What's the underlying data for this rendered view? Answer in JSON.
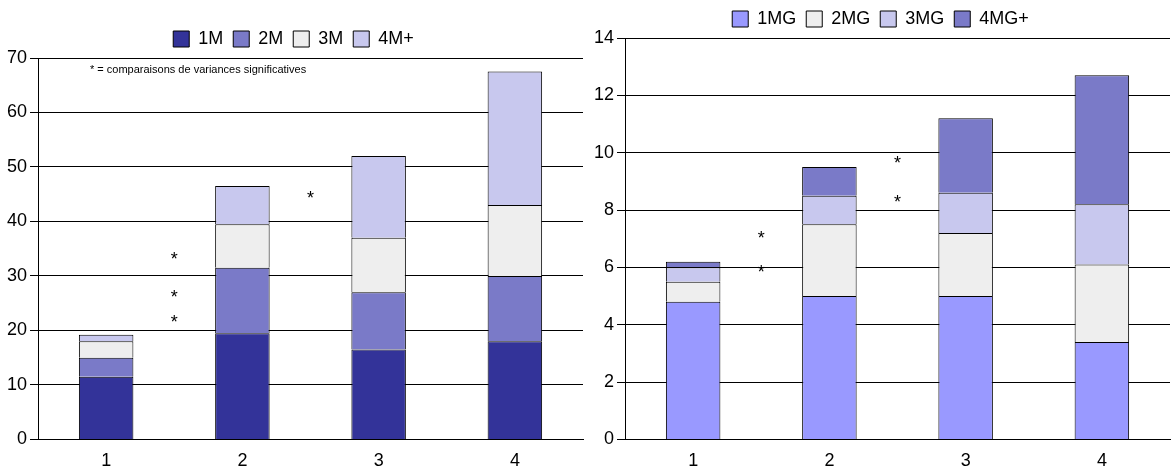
{
  "chart_data": [
    {
      "type": "bar",
      "stacked": true,
      "categories": [
        "1",
        "2",
        "3",
        "4"
      ],
      "ylim": [
        0,
        70
      ],
      "yticks": [
        0,
        10,
        20,
        30,
        40,
        50,
        60,
        70
      ],
      "grid": "y",
      "legend": "top",
      "series": [
        {
          "name": "1M",
          "color": "#333399",
          "values": [
            11.5,
            19.5,
            16.5,
            18
          ]
        },
        {
          "name": "2M",
          "color": "#7a7ac8",
          "values": [
            3.5,
            12,
            10.5,
            12
          ]
        },
        {
          "name": "3M",
          "color": "#eeeeee",
          "values": [
            3,
            8,
            10,
            13
          ]
        },
        {
          "name": "4M+",
          "color": "#c8c8ee",
          "values": [
            1.2,
            7,
            15,
            24.5
          ]
        }
      ],
      "annotations": [
        "* = comparaisons de variances significatives",
        "*",
        "*",
        "*",
        "*"
      ]
    },
    {
      "type": "bar",
      "stacked": true,
      "categories": [
        "1",
        "2",
        "3",
        "4"
      ],
      "ylim": [
        0,
        14
      ],
      "yticks": [
        0,
        2,
        4,
        6,
        8,
        10,
        12,
        14
      ],
      "grid": "y",
      "legend": "top",
      "series": [
        {
          "name": "1MG",
          "color": "#9999ff",
          "values": [
            4.8,
            5,
            5,
            3.4
          ]
        },
        {
          "name": "2MG",
          "color": "#eeeeee",
          "values": [
            0.7,
            2.5,
            2.2,
            2.7
          ]
        },
        {
          "name": "3MG",
          "color": "#c8c8ee",
          "values": [
            0.5,
            1,
            1.4,
            2.1
          ]
        },
        {
          "name": "4MG+",
          "color": "#7a7ac8",
          "values": [
            0.2,
            1,
            2.6,
            4.5
          ]
        }
      ],
      "annotations": [
        "*",
        "*",
        "*",
        "*"
      ]
    }
  ]
}
